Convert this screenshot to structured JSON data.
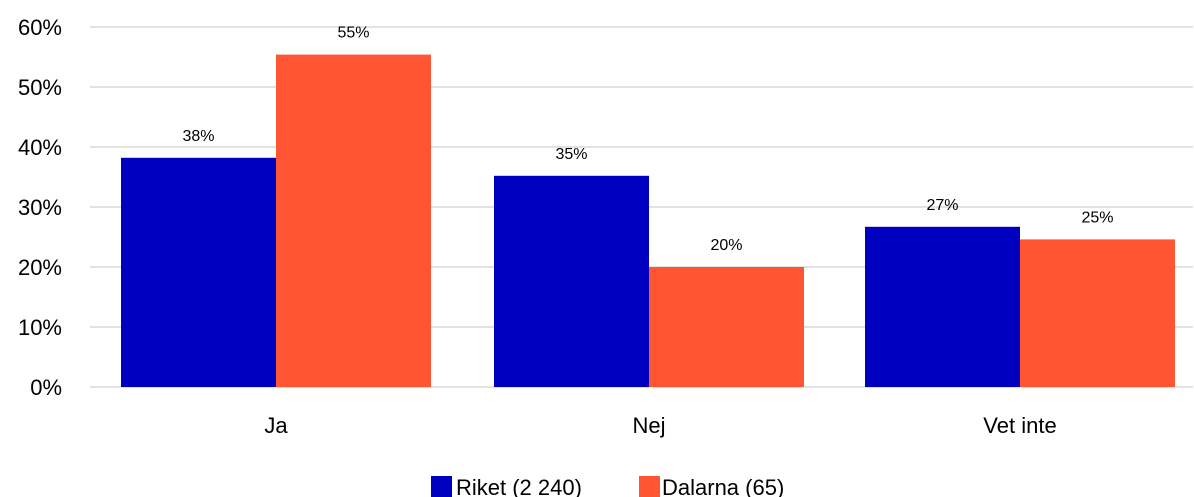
{
  "chart_data": {
    "type": "bar",
    "title": "",
    "xlabel": "",
    "ylabel": "",
    "categories": [
      "Ja",
      "Nej",
      "Vet inte"
    ],
    "series": [
      {
        "name": "Riket (2 240)",
        "color": "#0000c0",
        "values": [
          38,
          35,
          27
        ],
        "labels": [
          "38%",
          "35%",
          "27%"
        ],
        "plotted": [
          38.2,
          35.2,
          26.7
        ]
      },
      {
        "name": "Dalarna (65)",
        "color": "#ff5533",
        "values": [
          55,
          20,
          25
        ],
        "labels": [
          "55%",
          "20%",
          "25%"
        ],
        "plotted": [
          55.4,
          20.0,
          24.6
        ]
      }
    ],
    "ylim": [
      0,
      60
    ],
    "yticks": [
      0,
      10,
      20,
      30,
      40,
      50,
      60
    ],
    "ytick_labels": [
      "0%",
      "10%",
      "20%",
      "30%",
      "40%",
      "50%",
      "60%"
    ],
    "grid": true,
    "legend_position": "bottom-center"
  }
}
